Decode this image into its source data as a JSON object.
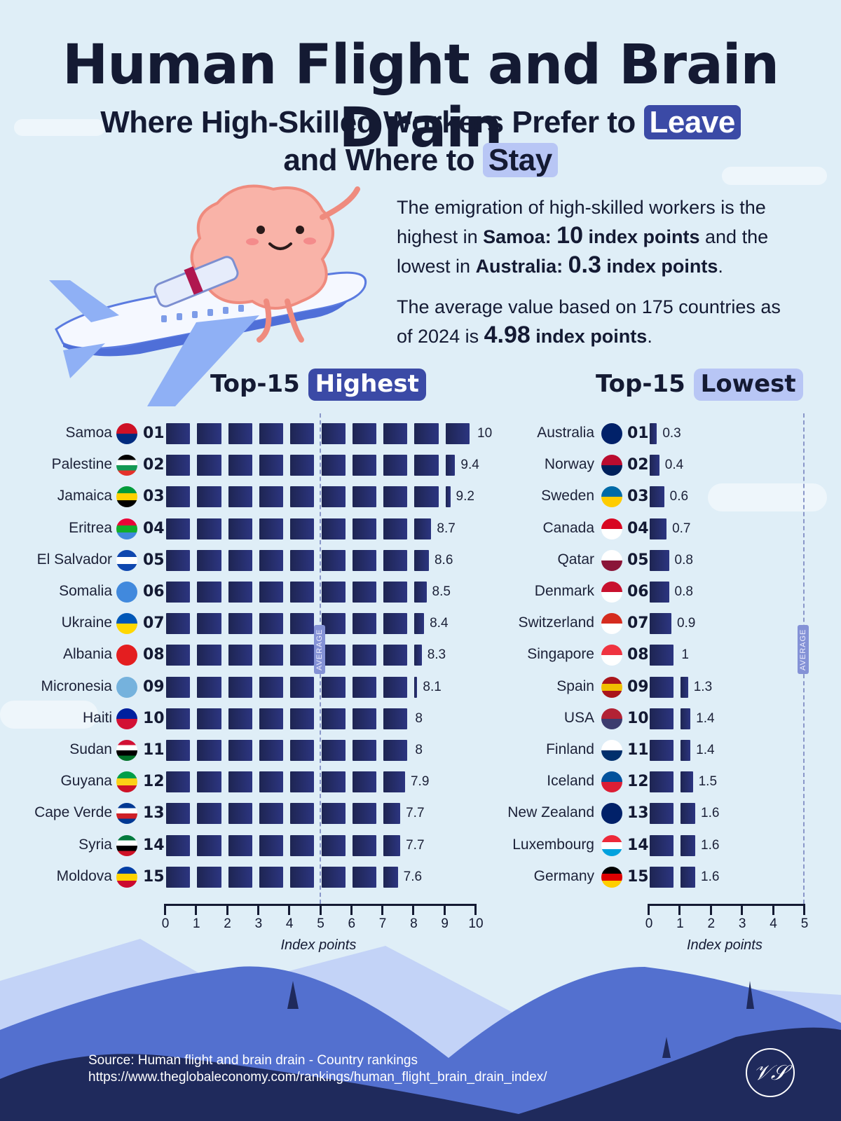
{
  "header": {
    "title": "Human Flight and Brain Drain",
    "subtitle_line1_pre": "Where High-Skilled Workers Prefer to",
    "subtitle_highlight_leave": "Leave",
    "subtitle_line2_pre": "and Where to",
    "subtitle_highlight_stay": "Stay"
  },
  "intro": {
    "p1_a": "The emigration of high-skilled workers is the highest in ",
    "p1_country_high": "Samoa:",
    "p1_value_high": "10",
    "p1_unit_high": "index points",
    "p1_b": " and the lowest in ",
    "p1_country_low": "Australia:",
    "p1_value_low": "0.3",
    "p1_unit_low": "index points",
    "p1_end": ".",
    "p2_a": "The average value based on 175 countries as of 2024  is ",
    "p2_value": "4.98",
    "p2_unit": "index points",
    "p2_end": "."
  },
  "sections": {
    "highest": {
      "prefix": "Top-15",
      "label": "Highest"
    },
    "lowest": {
      "prefix": "Top-15",
      "label": "Lowest"
    }
  },
  "average_label": "AVERAGE",
  "colors": {
    "background": "#dfeef7",
    "bar": "#232b63",
    "highlight_dark": "#3b4aa6",
    "highlight_light": "#b8c6f5",
    "text": "#141a33",
    "average_line": "#8a97c9",
    "footer": "#1f2a5c"
  },
  "chart_data": [
    {
      "type": "bar",
      "orientation": "horizontal",
      "title": "Top-15 Highest",
      "xlabel": "Index points",
      "xlim": [
        0,
        10
      ],
      "xticks": [
        0,
        1,
        2,
        3,
        4,
        5,
        6,
        7,
        8,
        9,
        10
      ],
      "average_line": 4.98,
      "categories": [
        "Samoa",
        "Palestine",
        "Jamaica",
        "Eritrea",
        "El Salvador",
        "Somalia",
        "Ukraine",
        "Albania",
        "Micronesia",
        "Haiti",
        "Sudan",
        "Guyana",
        "Cape Verde",
        "Syria",
        "Moldova"
      ],
      "ranks": [
        "01",
        "02",
        "03",
        "04",
        "05",
        "06",
        "07",
        "08",
        "09",
        "10",
        "11",
        "12",
        "13",
        "14",
        "15"
      ],
      "values": [
        10,
        9.4,
        9.2,
        8.7,
        8.6,
        8.5,
        8.4,
        8.3,
        8.1,
        8,
        8,
        7.9,
        7.7,
        7.7,
        7.6
      ],
      "value_labels": [
        "10",
        "9.4",
        "9.2",
        "8.7",
        "8.6",
        "8.5",
        "8.4",
        "8.3",
        "8.1",
        "8",
        "8",
        "7.9",
        "7.7",
        "7.7",
        "7.6"
      ]
    },
    {
      "type": "bar",
      "orientation": "horizontal",
      "title": "Top-15 Lowest",
      "xlabel": "Index points",
      "xlim": [
        0,
        5
      ],
      "xticks": [
        0,
        1,
        2,
        3,
        4,
        5
      ],
      "average_line": 4.98,
      "categories": [
        "Australia",
        "Norway",
        "Sweden",
        "Canada",
        "Qatar",
        "Denmark",
        "Switzerland",
        "Singapore",
        "Spain",
        "USA",
        "Finland",
        "Iceland",
        "New Zealand",
        "Luxembourg",
        "Germany"
      ],
      "ranks": [
        "01",
        "02",
        "03",
        "04",
        "05",
        "06",
        "07",
        "08",
        "09",
        "10",
        "11",
        "12",
        "13",
        "14",
        "15"
      ],
      "values": [
        0.3,
        0.4,
        0.6,
        0.7,
        0.8,
        0.8,
        0.9,
        1,
        1.3,
        1.4,
        1.4,
        1.5,
        1.6,
        1.6,
        1.6
      ],
      "value_labels": [
        "0.3",
        "0.4",
        "0.6",
        "0.7",
        "0.8",
        "0.8",
        "0.9",
        "1",
        "1.3",
        "1.4",
        "1.4",
        "1.5",
        "1.6",
        "1.6",
        "1.6"
      ]
    }
  ],
  "flags": {
    "Samoa": [
      "#ce1126",
      "#002b7f"
    ],
    "Palestine": [
      "#000000",
      "#ffffff",
      "#149954",
      "#e4312b"
    ],
    "Jamaica": [
      "#009b3a",
      "#fed100",
      "#000000"
    ],
    "Eritrea": [
      "#ea0437",
      "#12ad2b",
      "#4189dd"
    ],
    "El Salvador": [
      "#0f47af",
      "#ffffff",
      "#0f47af"
    ],
    "Somalia": [
      "#4189dd"
    ],
    "Ukraine": [
      "#0057b7",
      "#ffd700"
    ],
    "Albania": [
      "#e41e20"
    ],
    "Micronesia": [
      "#75b2dd"
    ],
    "Haiti": [
      "#00209f",
      "#d21034"
    ],
    "Sudan": [
      "#d21034",
      "#ffffff",
      "#000000",
      "#007229"
    ],
    "Guyana": [
      "#009e49",
      "#fcd116",
      "#ce1126"
    ],
    "Cape Verde": [
      "#003893",
      "#ffffff",
      "#cf2027",
      "#003893"
    ],
    "Syria": [
      "#007a3d",
      "#ffffff",
      "#000000",
      "#ce1126"
    ],
    "Moldova": [
      "#003da5",
      "#ffd200",
      "#cc092f"
    ],
    "Australia": [
      "#012169"
    ],
    "Norway": [
      "#ba0c2f",
      "#00205b"
    ],
    "Sweden": [
      "#006aa7",
      "#fecc00"
    ],
    "Canada": [
      "#d80621",
      "#ffffff"
    ],
    "Qatar": [
      "#ffffff",
      "#8a1538"
    ],
    "Denmark": [
      "#c8102e",
      "#ffffff"
    ],
    "Switzerland": [
      "#d52b1e",
      "#ffffff"
    ],
    "Singapore": [
      "#ef3340",
      "#ffffff"
    ],
    "Spain": [
      "#aa151b",
      "#f1bf00",
      "#aa151b"
    ],
    "USA": [
      "#b22234",
      "#3c3b6e"
    ],
    "Finland": [
      "#ffffff",
      "#002f6c"
    ],
    "Iceland": [
      "#02529c",
      "#dc1e35"
    ],
    "New Zealand": [
      "#012169"
    ],
    "Luxembourg": [
      "#ed2939",
      "#ffffff",
      "#00a1de"
    ],
    "Germany": [
      "#000000",
      "#dd0000",
      "#ffce00"
    ]
  },
  "footer": {
    "source_line": "Source: Human flight and brain drain - Country rankings",
    "url_line": "https://www.theglobaleconomy.com/rankings/human_flight_brain_drain_index/",
    "logo_text": "𝒱𝒮"
  }
}
